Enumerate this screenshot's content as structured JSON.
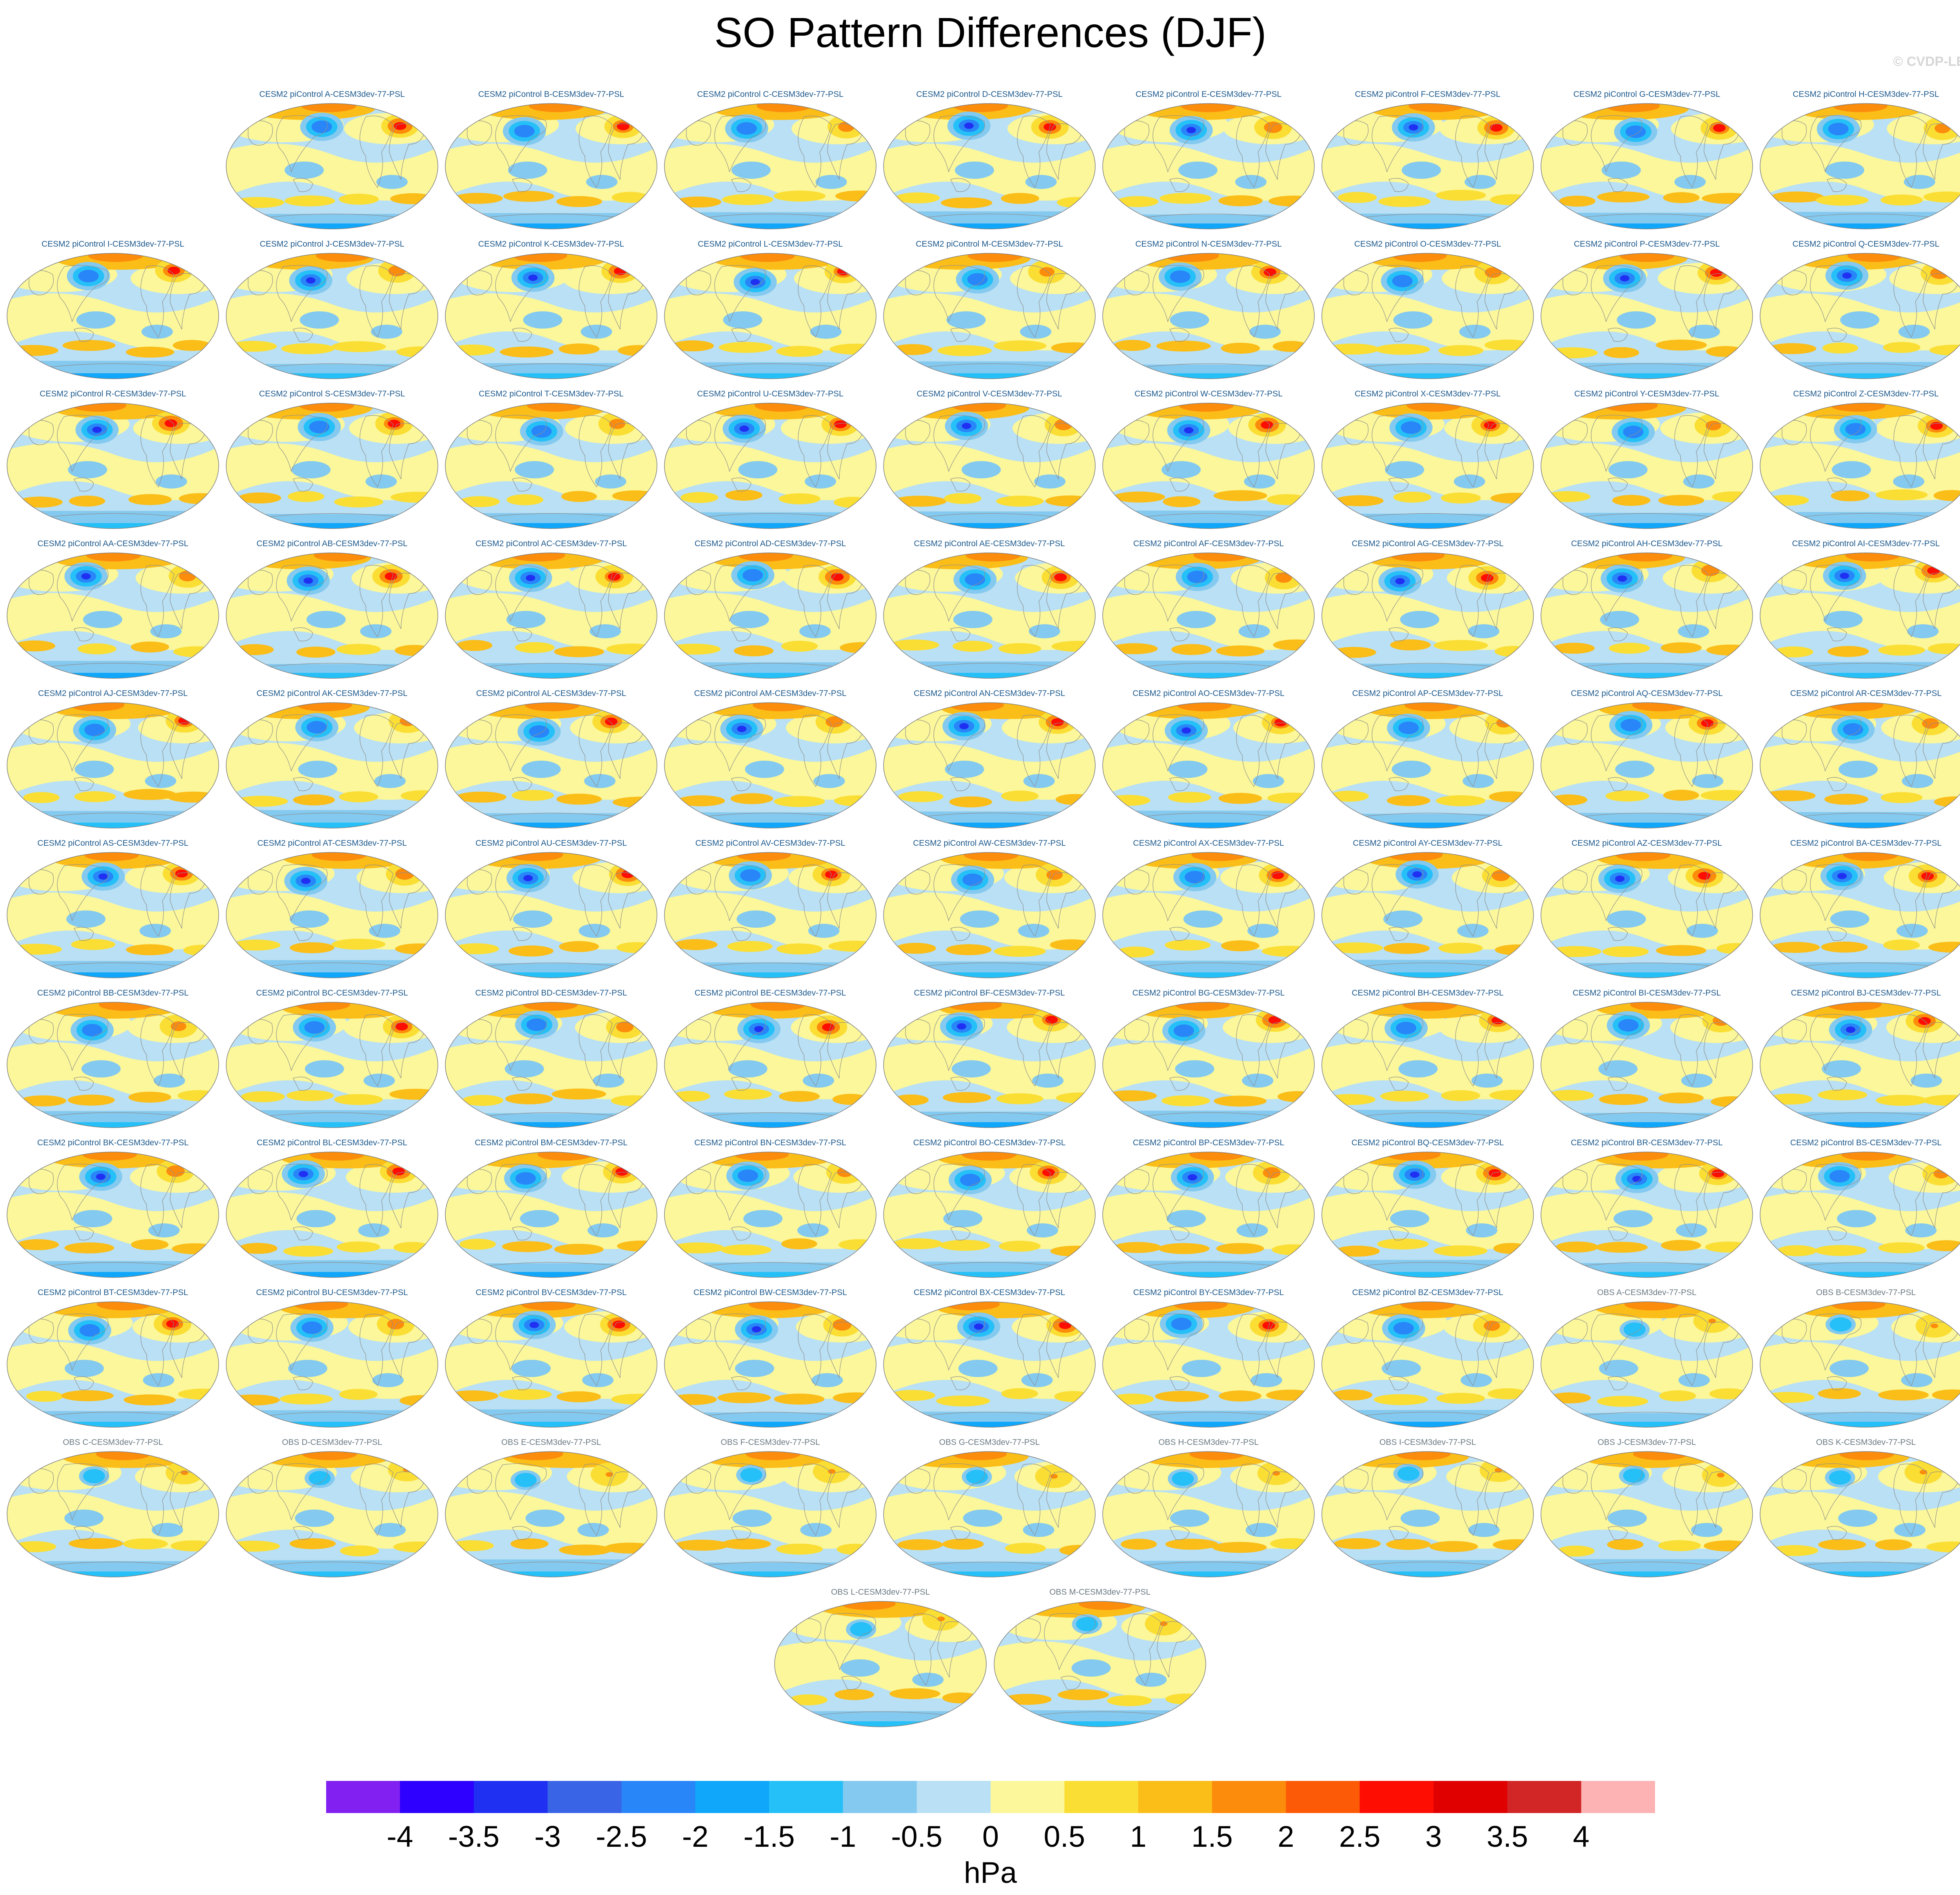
{
  "title": "SO Pattern Differences (DJF)",
  "credit": "© CVDP-LE",
  "rows": [
    [
      "CESM2 piControl A-CESM3dev-77-PSL",
      "CESM2 piControl B-CESM3dev-77-PSL",
      "CESM2 piControl C-CESM3dev-77-PSL",
      "CESM2 piControl D-CESM3dev-77-PSL",
      "CESM2 piControl E-CESM3dev-77-PSL",
      "CESM2 piControl F-CESM3dev-77-PSL",
      "CESM2 piControl G-CESM3dev-77-PSL",
      "CESM2 piControl H-CESM3dev-77-PSL"
    ],
    [
      "CESM2 piControl I-CESM3dev-77-PSL",
      "CESM2 piControl J-CESM3dev-77-PSL",
      "CESM2 piControl K-CESM3dev-77-PSL",
      "CESM2 piControl L-CESM3dev-77-PSL",
      "CESM2 piControl M-CESM3dev-77-PSL",
      "CESM2 piControl N-CESM3dev-77-PSL",
      "CESM2 piControl O-CESM3dev-77-PSL",
      "CESM2 piControl P-CESM3dev-77-PSL",
      "CESM2 piControl Q-CESM3dev-77-PSL"
    ],
    [
      "CESM2 piControl R-CESM3dev-77-PSL",
      "CESM2 piControl S-CESM3dev-77-PSL",
      "CESM2 piControl T-CESM3dev-77-PSL",
      "CESM2 piControl U-CESM3dev-77-PSL",
      "CESM2 piControl V-CESM3dev-77-PSL",
      "CESM2 piControl W-CESM3dev-77-PSL",
      "CESM2 piControl X-CESM3dev-77-PSL",
      "CESM2 piControl Y-CESM3dev-77-PSL",
      "CESM2 piControl Z-CESM3dev-77-PSL"
    ],
    [
      "CESM2 piControl AA-CESM3dev-77-PSL",
      "CESM2 piControl AB-CESM3dev-77-PSL",
      "CESM2 piControl AC-CESM3dev-77-PSL",
      "CESM2 piControl AD-CESM3dev-77-PSL",
      "CESM2 piControl AE-CESM3dev-77-PSL",
      "CESM2 piControl AF-CESM3dev-77-PSL",
      "CESM2 piControl AG-CESM3dev-77-PSL",
      "CESM2 piControl AH-CESM3dev-77-PSL",
      "CESM2 piControl AI-CESM3dev-77-PSL"
    ],
    [
      "CESM2 piControl AJ-CESM3dev-77-PSL",
      "CESM2 piControl AK-CESM3dev-77-PSL",
      "CESM2 piControl AL-CESM3dev-77-PSL",
      "CESM2 piControl AM-CESM3dev-77-PSL",
      "CESM2 piControl AN-CESM3dev-77-PSL",
      "CESM2 piControl AO-CESM3dev-77-PSL",
      "CESM2 piControl AP-CESM3dev-77-PSL",
      "CESM2 piControl AQ-CESM3dev-77-PSL",
      "CESM2 piControl AR-CESM3dev-77-PSL"
    ],
    [
      "CESM2 piControl AS-CESM3dev-77-PSL",
      "CESM2 piControl AT-CESM3dev-77-PSL",
      "CESM2 piControl AU-CESM3dev-77-PSL",
      "CESM2 piControl AV-CESM3dev-77-PSL",
      "CESM2 piControl AW-CESM3dev-77-PSL",
      "CESM2 piControl AX-CESM3dev-77-PSL",
      "CESM2 piControl AY-CESM3dev-77-PSL",
      "CESM2 piControl AZ-CESM3dev-77-PSL",
      "CESM2 piControl BA-CESM3dev-77-PSL"
    ],
    [
      "CESM2 piControl BB-CESM3dev-77-PSL",
      "CESM2 piControl BC-CESM3dev-77-PSL",
      "CESM2 piControl BD-CESM3dev-77-PSL",
      "CESM2 piControl BE-CESM3dev-77-PSL",
      "CESM2 piControl BF-CESM3dev-77-PSL",
      "CESM2 piControl BG-CESM3dev-77-PSL",
      "CESM2 piControl BH-CESM3dev-77-PSL",
      "CESM2 piControl BI-CESM3dev-77-PSL",
      "CESM2 piControl BJ-CESM3dev-77-PSL"
    ],
    [
      "CESM2 piControl BK-CESM3dev-77-PSL",
      "CESM2 piControl BL-CESM3dev-77-PSL",
      "CESM2 piControl BM-CESM3dev-77-PSL",
      "CESM2 piControl BN-CESM3dev-77-PSL",
      "CESM2 piControl BO-CESM3dev-77-PSL",
      "CESM2 piControl BP-CESM3dev-77-PSL",
      "CESM2 piControl BQ-CESM3dev-77-PSL",
      "CESM2 piControl BR-CESM3dev-77-PSL",
      "CESM2 piControl BS-CESM3dev-77-PSL"
    ],
    [
      "CESM2 piControl BT-CESM3dev-77-PSL",
      "CESM2 piControl BU-CESM3dev-77-PSL",
      "CESM2 piControl BV-CESM3dev-77-PSL",
      "CESM2 piControl BW-CESM3dev-77-PSL",
      "CESM2 piControl BX-CESM3dev-77-PSL",
      "CESM2 piControl BY-CESM3dev-77-PSL",
      "CESM2 piControl BZ-CESM3dev-77-PSL",
      "OBS A-CESM3dev-77-PSL",
      "OBS B-CESM3dev-77-PSL"
    ],
    [
      "OBS C-CESM3dev-77-PSL",
      "OBS D-CESM3dev-77-PSL",
      "OBS E-CESM3dev-77-PSL",
      "OBS F-CESM3dev-77-PSL",
      "OBS G-CESM3dev-77-PSL",
      "OBS H-CESM3dev-77-PSL",
      "OBS I-CESM3dev-77-PSL",
      "OBS J-CESM3dev-77-PSL",
      "OBS K-CESM3dev-77-PSL"
    ],
    [
      "OBS L-CESM3dev-77-PSL",
      "OBS M-CESM3dev-77-PSL"
    ]
  ],
  "colorbar": {
    "units": "hPa",
    "colors": [
      "#8120f0",
      "#2d00ff",
      "#2030f2",
      "#3a64e6",
      "#2886f8",
      "#10a6fa",
      "#26c0f8",
      "#84c9ef",
      "#b9e0f4",
      "#fbf79a",
      "#fbde34",
      "#fbbd18",
      "#fc8c0c",
      "#fd5a08",
      "#fd0d02",
      "#e00000",
      "#d22626",
      "#fdb2b4"
    ],
    "ticks": [
      "-4",
      "-3.5",
      "-3",
      "-2.5",
      "-2",
      "-1.5",
      "-1",
      "-0.5",
      "0",
      "0.5",
      "1",
      "1.5",
      "2",
      "2.5",
      "3",
      "3.5",
      "4"
    ]
  }
}
